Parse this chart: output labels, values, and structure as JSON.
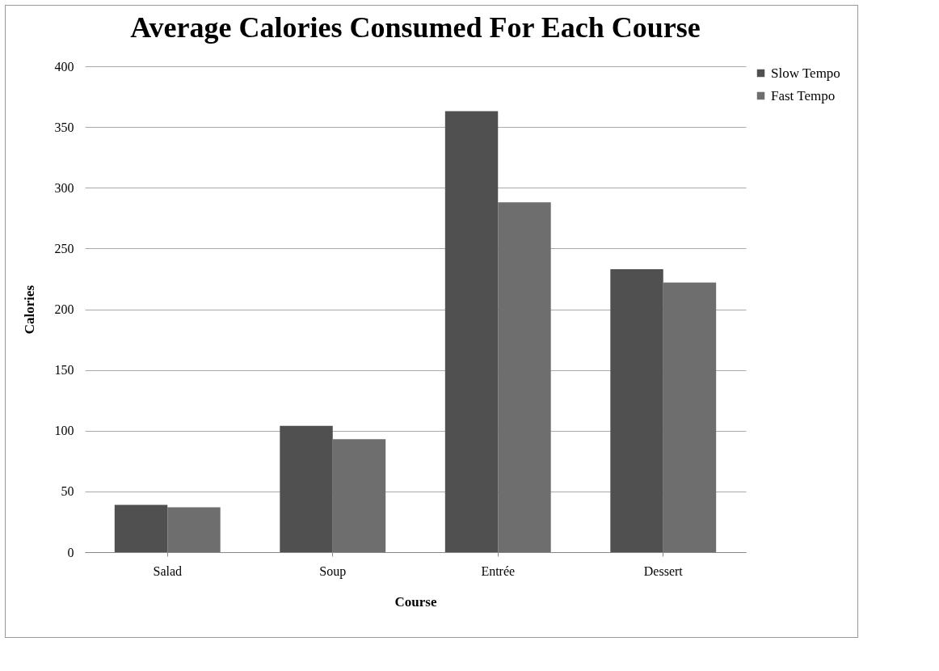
{
  "chart_data": {
    "type": "bar",
    "title": "Average Calories Consumed For Each Course",
    "xlabel": "Course",
    "ylabel": "Calories",
    "categories": [
      "Salad",
      "Soup",
      "Entrée",
      "Dessert"
    ],
    "series": [
      {
        "name": "Slow Tempo",
        "color": "#505050",
        "values": [
          39,
          104,
          363,
          233
        ]
      },
      {
        "name": "Fast Tempo",
        "color": "#6e6e6e",
        "values": [
          37,
          93,
          288,
          222
        ]
      }
    ],
    "ylim": [
      0,
      400
    ],
    "yticks": [
      0,
      50,
      100,
      150,
      200,
      250,
      300,
      350,
      400
    ],
    "grid": "y",
    "legend": "right"
  }
}
